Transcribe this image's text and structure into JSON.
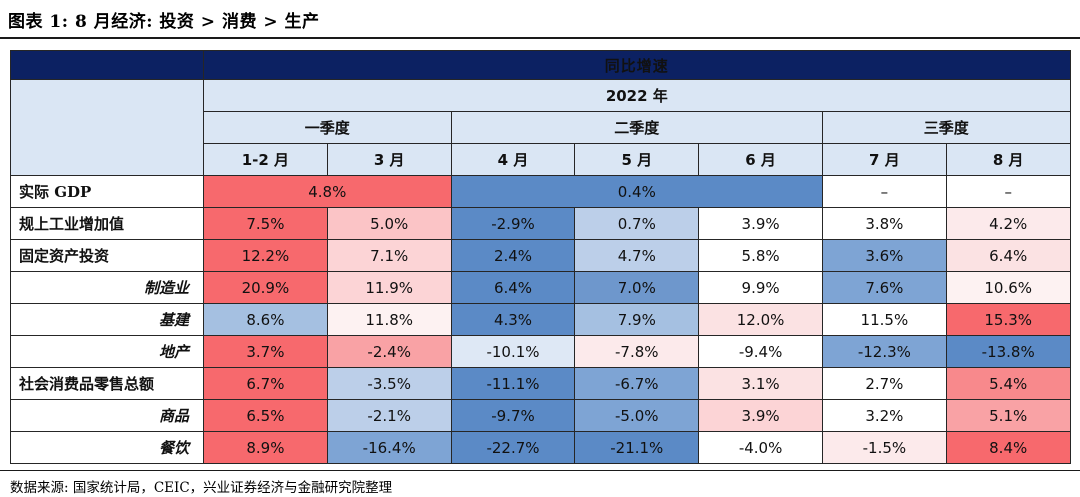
{
  "title": "图表 1: 8 月经济: 投资 > 消费 > 生产",
  "source": "数据来源: 国家统计局，CEIC，兴业证券经济与金融研究院整理",
  "table": {
    "top_header": "同比增速",
    "year_header": "2022 年",
    "quarters": [
      {
        "label": "一季度",
        "span": 2
      },
      {
        "label": "二季度",
        "span": 3
      },
      {
        "label": "三季度",
        "span": 2
      }
    ],
    "months": [
      "1-2 月",
      "3 月",
      "4 月",
      "5 月",
      "6 月",
      "7 月",
      "8 月"
    ],
    "palette": {
      "red_strong": "#F7696D",
      "red_med": "#F8898C",
      "pink": "#F9A2A5",
      "pink_light": "#FBC4C6",
      "pink_lighter": "#FCD4D6",
      "pink_pale": "#FBE2E3",
      "pink_vpale": "#FCEAEB",
      "pink_faint": "#FDF2F2",
      "white": "#FFFFFF",
      "blue_strong": "#5B8AC6",
      "blue_med2": "#6E97CC",
      "blue_med": "#7EA4D4",
      "blue_mlight": "#A5C0E1",
      "blue_light": "#BCCFE9",
      "blue_vlight": "#DEE8F5",
      "navy": "#0C2162",
      "head_blue": "#DAE6F4"
    },
    "rows": [
      {
        "label": "实际 GDP",
        "indent": false,
        "cells": [
          {
            "text": "4.8%",
            "span": 2,
            "color": "red_strong"
          },
          {
            "text": "0.4%",
            "span": 3,
            "color": "blue_strong"
          },
          {
            "text": "–",
            "span": 1,
            "color": "white"
          },
          {
            "text": "–",
            "span": 1,
            "color": "white"
          }
        ]
      },
      {
        "label": "规上工业增加值",
        "indent": false,
        "cells": [
          {
            "text": "7.5%",
            "color": "red_strong"
          },
          {
            "text": "5.0%",
            "color": "pink_light"
          },
          {
            "text": "-2.9%",
            "color": "blue_strong"
          },
          {
            "text": "0.7%",
            "color": "blue_light"
          },
          {
            "text": "3.9%",
            "color": "white"
          },
          {
            "text": "3.8%",
            "color": "white"
          },
          {
            "text": "4.2%",
            "color": "pink_vpale"
          }
        ]
      },
      {
        "label": "固定资产投资",
        "indent": false,
        "cells": [
          {
            "text": "12.2%",
            "color": "red_strong"
          },
          {
            "text": "7.1%",
            "color": "pink_lighter"
          },
          {
            "text": "2.4%",
            "color": "blue_strong"
          },
          {
            "text": "4.7%",
            "color": "blue_light"
          },
          {
            "text": "5.8%",
            "color": "white"
          },
          {
            "text": "3.6%",
            "color": "blue_med"
          },
          {
            "text": "6.4%",
            "color": "pink_pale"
          }
        ]
      },
      {
        "label": "制造业",
        "indent": true,
        "cells": [
          {
            "text": "20.9%",
            "color": "red_strong"
          },
          {
            "text": "11.9%",
            "color": "pink_lighter"
          },
          {
            "text": "6.4%",
            "color": "blue_strong"
          },
          {
            "text": "7.0%",
            "color": "blue_med2"
          },
          {
            "text": "9.9%",
            "color": "white"
          },
          {
            "text": "7.6%",
            "color": "blue_med"
          },
          {
            "text": "10.6%",
            "color": "pink_faint"
          }
        ]
      },
      {
        "label": "基建",
        "indent": true,
        "cells": [
          {
            "text": "8.6%",
            "color": "blue_mlight"
          },
          {
            "text": "11.8%",
            "color": "pink_faint"
          },
          {
            "text": "4.3%",
            "color": "blue_strong"
          },
          {
            "text": "7.9%",
            "color": "blue_mlight"
          },
          {
            "text": "12.0%",
            "color": "pink_pale"
          },
          {
            "text": "11.5%",
            "color": "white"
          },
          {
            "text": "15.3%",
            "color": "red_strong"
          }
        ]
      },
      {
        "label": "地产",
        "indent": true,
        "cells": [
          {
            "text": "3.7%",
            "color": "red_strong"
          },
          {
            "text": "-2.4%",
            "color": "pink"
          },
          {
            "text": "-10.1%",
            "color": "blue_vlight"
          },
          {
            "text": "-7.8%",
            "color": "pink_vpale"
          },
          {
            "text": "-9.4%",
            "color": "white"
          },
          {
            "text": "-12.3%",
            "color": "blue_med"
          },
          {
            "text": "-13.8%",
            "color": "blue_strong"
          }
        ]
      },
      {
        "label": "社会消费品零售总额",
        "indent": false,
        "cells": [
          {
            "text": "6.7%",
            "color": "red_strong"
          },
          {
            "text": "-3.5%",
            "color": "blue_light"
          },
          {
            "text": "-11.1%",
            "color": "blue_strong"
          },
          {
            "text": "-6.7%",
            "color": "blue_med"
          },
          {
            "text": "3.1%",
            "color": "pink_pale"
          },
          {
            "text": "2.7%",
            "color": "white"
          },
          {
            "text": "5.4%",
            "color": "red_med"
          }
        ]
      },
      {
        "label": "商品",
        "indent": true,
        "cells": [
          {
            "text": "6.5%",
            "color": "red_strong"
          },
          {
            "text": "-2.1%",
            "color": "blue_light"
          },
          {
            "text": "-9.7%",
            "color": "blue_strong"
          },
          {
            "text": "-5.0%",
            "color": "blue_med"
          },
          {
            "text": "3.9%",
            "color": "pink_lighter"
          },
          {
            "text": "3.2%",
            "color": "white"
          },
          {
            "text": "5.1%",
            "color": "pink"
          }
        ]
      },
      {
        "label": "餐饮",
        "indent": true,
        "cells": [
          {
            "text": "8.9%",
            "color": "red_strong"
          },
          {
            "text": "-16.4%",
            "color": "blue_med"
          },
          {
            "text": "-22.7%",
            "color": "blue_strong"
          },
          {
            "text": "-21.1%",
            "color": "blue_strong"
          },
          {
            "text": "-4.0%",
            "color": "white"
          },
          {
            "text": "-1.5%",
            "color": "pink_vpale"
          },
          {
            "text": "8.4%",
            "color": "red_strong"
          }
        ]
      }
    ]
  },
  "chart_data": {
    "type": "heatmap",
    "title": "同比增速",
    "subtitle": "2022 年",
    "unit": "%",
    "columns": [
      "1-2月",
      "3月",
      "4月",
      "5月",
      "6月",
      "7月",
      "8月"
    ],
    "column_groups": [
      {
        "label": "一季度",
        "columns": [
          "1-2月",
          "3月"
        ]
      },
      {
        "label": "二季度",
        "columns": [
          "4月",
          "5月",
          "6月"
        ]
      },
      {
        "label": "三季度",
        "columns": [
          "7月",
          "8月"
        ]
      }
    ],
    "rows": [
      {
        "name": "实际GDP",
        "values": [
          4.8,
          4.8,
          0.4,
          0.4,
          0.4,
          null,
          null
        ],
        "note": "4.8% merged over Q1, 0.4% merged over Q2, 7月/8月 shown as –"
      },
      {
        "name": "规上工业增加值",
        "values": [
          7.5,
          5.0,
          -2.9,
          0.7,
          3.9,
          3.8,
          4.2
        ]
      },
      {
        "name": "固定资产投资",
        "values": [
          12.2,
          7.1,
          2.4,
          4.7,
          5.8,
          3.6,
          6.4
        ]
      },
      {
        "name": "制造业",
        "values": [
          20.9,
          11.9,
          6.4,
          7.0,
          9.9,
          7.6,
          10.6
        ]
      },
      {
        "name": "基建",
        "values": [
          8.6,
          11.8,
          4.3,
          7.9,
          12.0,
          11.5,
          15.3
        ]
      },
      {
        "name": "地产",
        "values": [
          3.7,
          -2.4,
          -10.1,
          -7.8,
          -9.4,
          -12.3,
          -13.8
        ]
      },
      {
        "name": "社会消费品零售总额",
        "values": [
          6.7,
          -3.5,
          -11.1,
          -6.7,
          3.1,
          2.7,
          5.4
        ]
      },
      {
        "name": "商品",
        "values": [
          6.5,
          -2.1,
          -9.7,
          -5.0,
          3.9,
          3.2,
          5.1
        ]
      },
      {
        "name": "餐饮",
        "values": [
          8.9,
          -16.4,
          -22.7,
          -21.1,
          -4.0,
          -1.5,
          8.4
        ]
      }
    ],
    "legend_position": "none",
    "color_coding": {
      "red": "#F7696D",
      "blue": "#5B8AC6",
      "meaning": "red = stronger/improving, blue = weaker/negative"
    }
  }
}
